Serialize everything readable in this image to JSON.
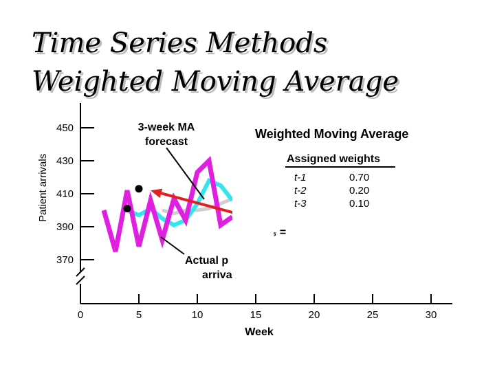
{
  "title_line1": "Time Series Methods",
  "title_line2": "Weighted Moving Average",
  "chart_data": {
    "type": "line",
    "xlabel": "Week",
    "ylabel": "Patient arrivals",
    "x_ticks": [
      0,
      5,
      10,
      15,
      20,
      25,
      30
    ],
    "y_ticks": [
      450,
      430,
      410,
      390,
      370
    ],
    "xlim": [
      0,
      30
    ],
    "ylim": [
      370,
      450
    ],
    "chart_heading": "Weighted Moving Average",
    "weights_table": {
      "heading": "Assigned weights",
      "rows": [
        {
          "period": "t-1",
          "weight": "0.70"
        },
        {
          "period": "t-2",
          "weight": "0.20"
        },
        {
          "period": "t-3",
          "weight": "0.10"
        }
      ]
    },
    "annotations": {
      "ma_forecast": [
        "3-week MA",
        "forecast"
      ],
      "actual": [
        "Actual p",
        "arriva"
      ],
      "formula": "F₅ ="
    },
    "series": [
      {
        "role": "actual",
        "color": "#e020e0",
        "x": [
          2,
          3,
          4,
          5,
          6,
          7,
          8,
          9,
          10,
          11,
          12,
          13
        ],
        "y": [
          400,
          375,
          412,
          378,
          406,
          382,
          407,
          394,
          423,
          430,
          391,
          396
        ]
      },
      {
        "role": "3-week MA forecast",
        "color": "#33e6ee",
        "x": [
          4,
          5,
          6,
          7,
          8,
          9,
          10,
          11,
          12,
          13
        ],
        "y": [
          400,
          397,
          401,
          395,
          391,
          394,
          404,
          418,
          415,
          406
        ]
      },
      {
        "role": "weighted MA forecast",
        "color": "#cfcfcf",
        "x": [
          7,
          8,
          9,
          10,
          11,
          12,
          13
        ],
        "y": [
          400,
          398,
          400,
          400,
          401,
          404,
          407
        ]
      }
    ],
    "points": [
      {
        "x": 5,
        "y": 413
      },
      {
        "x": 4,
        "y": 401
      }
    ],
    "arrow": {
      "color": "#e02020",
      "from": {
        "x": 16,
        "y": 393
      },
      "to": {
        "x": 6,
        "y": 412
      }
    }
  }
}
